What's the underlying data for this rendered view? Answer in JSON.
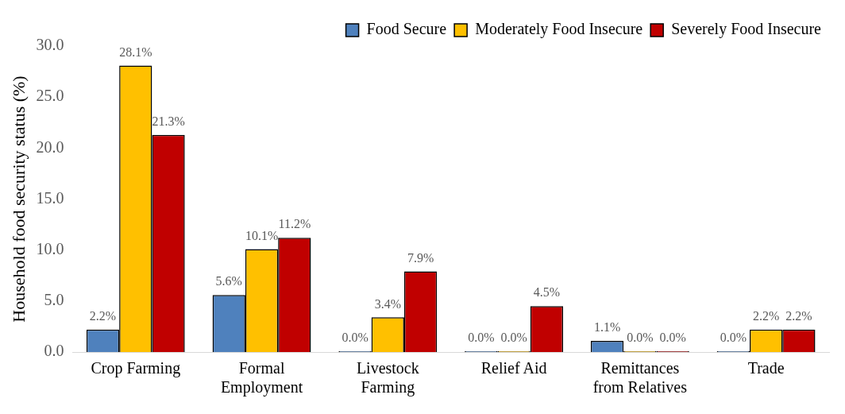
{
  "chart_data": {
    "type": "bar",
    "ylabel": "Household food security status (%)",
    "categories": [
      "Crop Farming",
      "Formal Employment",
      "Livestock Farming",
      "Relief Aid",
      "Remittances from Relatives",
      "Trade"
    ],
    "series": [
      {
        "name": "Food Secure",
        "color": "#4f81bd",
        "values": [
          2.2,
          5.6,
          0,
          0,
          1.1,
          0
        ],
        "value_labels": [
          "2.2%",
          "5.6%",
          "0.0%",
          "0.0%",
          "1.1%",
          "0.0%"
        ]
      },
      {
        "name": "Moderately Food Insecure",
        "color": "#ffc000",
        "values": [
          28.1,
          10.1,
          3.4,
          0,
          0,
          2.2
        ],
        "value_labels": [
          "28.1%",
          "10.1%",
          "3.4%",
          "0.0%",
          "0.0%",
          "2.2%"
        ]
      },
      {
        "name": "Severely Food Insecure",
        "color": "#c00000",
        "values": [
          21.3,
          11.2,
          7.9,
          4.5,
          0,
          2.2
        ],
        "value_labels": [
          "21.3%",
          "11.2%",
          "7.9%",
          "4.5%",
          "0.0%",
          "2.2%"
        ]
      }
    ],
    "ylim": [
      0,
      30
    ],
    "yticks": [
      {
        "value": 0,
        "label": "0.0"
      },
      {
        "value": 5,
        "label": "5.0"
      },
      {
        "value": 10,
        "label": "10.0"
      },
      {
        "value": 15,
        "label": "15.0"
      },
      {
        "value": 20,
        "label": "20.0"
      },
      {
        "value": 25,
        "label": "25.0"
      },
      {
        "value": 30,
        "label": "30.0"
      }
    ],
    "grid": false,
    "legend": "top"
  }
}
